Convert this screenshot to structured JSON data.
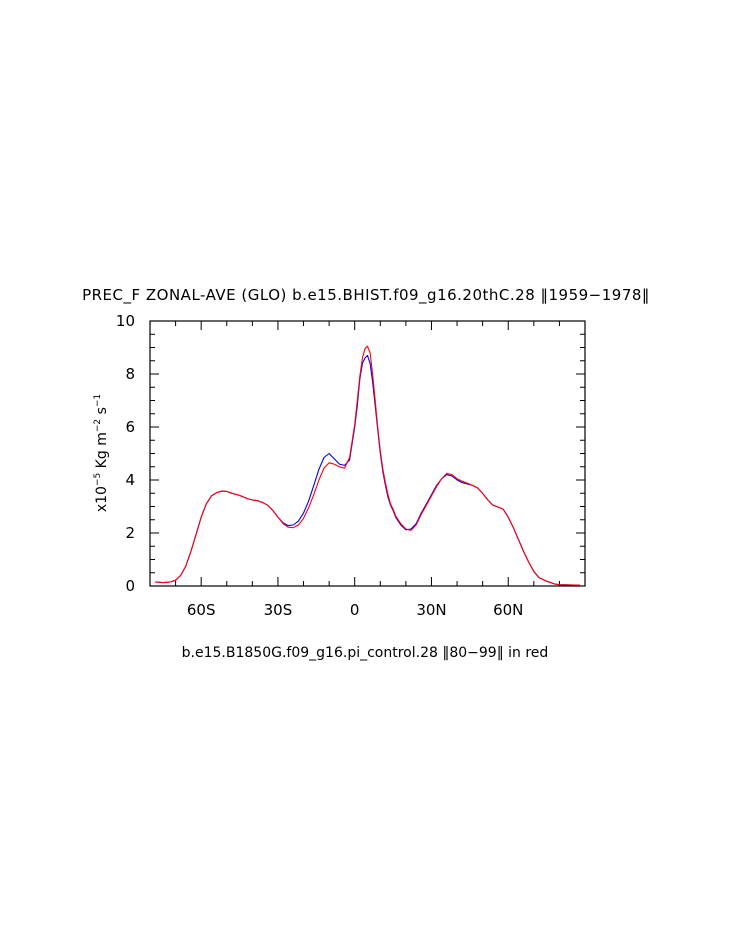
{
  "chart_data": {
    "type": "line",
    "title": "PREC_F ZONAL-AVE (GLO) b.e15.BHIST.f09_g16.20thC.28 ‖1959−1978‖",
    "subtitle": "b.e15.B1850G.f09_g16.pi_control.28 ‖80−99‖ in red",
    "ylabel": {
      "prefix": "x10",
      "exp": "−5",
      "rest": " Kg m",
      "exp2": "−2",
      "rest2": " s",
      "exp3": "−1"
    },
    "xlim": [
      -80,
      90
    ],
    "ylim": [
      0,
      10
    ],
    "xticks": [
      {
        "value": -60,
        "label": "60S"
      },
      {
        "value": -30,
        "label": "30S"
      },
      {
        "value": 0,
        "label": "0"
      },
      {
        "value": 30,
        "label": "30N"
      },
      {
        "value": 60,
        "label": "60N"
      }
    ],
    "yticks": [
      {
        "value": 0,
        "label": "0"
      },
      {
        "value": 2,
        "label": "2"
      },
      {
        "value": 4,
        "label": "4"
      },
      {
        "value": 6,
        "label": "6"
      },
      {
        "value": 8,
        "label": "8"
      },
      {
        "value": 10,
        "label": "10"
      }
    ],
    "grid": false,
    "series": [
      {
        "color": "#0000ff",
        "x": [
          -78,
          -75,
          -72,
          -70,
          -68,
          -66,
          -64,
          -62,
          -60,
          -58,
          -56,
          -54,
          -52,
          -50,
          -48,
          -46,
          -44,
          -42,
          -40,
          -38,
          -36,
          -34,
          -32,
          -30,
          -28,
          -26,
          -24,
          -22,
          -20,
          -18,
          -16,
          -14,
          -12,
          -10,
          -8,
          -6,
          -4,
          -2,
          0,
          1,
          2,
          3,
          4,
          5,
          6,
          7,
          8,
          9,
          10,
          11,
          12,
          13,
          14,
          15,
          16,
          18,
          20,
          22,
          24,
          26,
          28,
          30,
          32,
          34,
          36,
          38,
          40,
          42,
          44,
          46,
          48,
          50,
          52,
          54,
          56,
          58,
          60,
          62,
          64,
          66,
          68,
          70,
          72,
          75,
          78,
          80,
          84,
          88
        ],
        "y": [
          0.15,
          0.13,
          0.15,
          0.22,
          0.4,
          0.75,
          1.3,
          1.95,
          2.6,
          3.1,
          3.4,
          3.52,
          3.58,
          3.57,
          3.5,
          3.45,
          3.38,
          3.3,
          3.25,
          3.22,
          3.15,
          3.05,
          2.85,
          2.6,
          2.38,
          2.28,
          2.3,
          2.45,
          2.75,
          3.2,
          3.8,
          4.4,
          4.85,
          5.0,
          4.8,
          4.6,
          4.55,
          4.75,
          6.0,
          6.8,
          7.8,
          8.4,
          8.6,
          8.7,
          8.4,
          7.7,
          6.8,
          5.9,
          5.0,
          4.3,
          3.8,
          3.35,
          3.05,
          2.85,
          2.6,
          2.3,
          2.12,
          2.15,
          2.35,
          2.75,
          3.1,
          3.45,
          3.8,
          4.05,
          4.2,
          4.15,
          4.0,
          3.9,
          3.85,
          3.8,
          3.7,
          3.5,
          3.25,
          3.05,
          2.98,
          2.9,
          2.6,
          2.2,
          1.75,
          1.3,
          0.9,
          0.55,
          0.32,
          0.18,
          0.08,
          0.05,
          0.04,
          0.03
        ]
      },
      {
        "color": "#ff0000",
        "x": [
          -78,
          -75,
          -72,
          -70,
          -68,
          -66,
          -64,
          -62,
          -60,
          -58,
          -56,
          -54,
          -52,
          -50,
          -48,
          -46,
          -44,
          -42,
          -40,
          -38,
          -36,
          -34,
          -32,
          -30,
          -28,
          -26,
          -24,
          -22,
          -20,
          -18,
          -16,
          -14,
          -12,
          -10,
          -8,
          -6,
          -4,
          -2,
          0,
          1,
          2,
          3,
          4,
          5,
          6,
          7,
          8,
          9,
          10,
          11,
          12,
          13,
          14,
          15,
          16,
          18,
          20,
          22,
          24,
          26,
          28,
          30,
          32,
          34,
          36,
          38,
          40,
          42,
          44,
          46,
          48,
          50,
          52,
          54,
          56,
          58,
          60,
          62,
          64,
          66,
          68,
          70,
          72,
          75,
          78,
          80,
          84,
          88
        ],
        "y": [
          0.15,
          0.13,
          0.15,
          0.22,
          0.4,
          0.75,
          1.3,
          1.95,
          2.6,
          3.1,
          3.4,
          3.52,
          3.58,
          3.57,
          3.5,
          3.45,
          3.38,
          3.3,
          3.25,
          3.22,
          3.15,
          3.05,
          2.85,
          2.6,
          2.35,
          2.22,
          2.2,
          2.3,
          2.55,
          2.95,
          3.45,
          4.0,
          4.45,
          4.65,
          4.6,
          4.5,
          4.45,
          4.85,
          6.1,
          7.0,
          7.9,
          8.6,
          8.95,
          9.05,
          8.8,
          8.0,
          7.0,
          6.0,
          5.1,
          4.4,
          3.9,
          3.45,
          3.1,
          2.9,
          2.65,
          2.35,
          2.15,
          2.1,
          2.3,
          2.7,
          3.05,
          3.4,
          3.75,
          4.05,
          4.25,
          4.2,
          4.05,
          3.95,
          3.88,
          3.8,
          3.7,
          3.5,
          3.25,
          3.05,
          2.98,
          2.9,
          2.6,
          2.2,
          1.75,
          1.3,
          0.9,
          0.55,
          0.32,
          0.18,
          0.08,
          0.05,
          0.04,
          0.03
        ]
      }
    ]
  }
}
